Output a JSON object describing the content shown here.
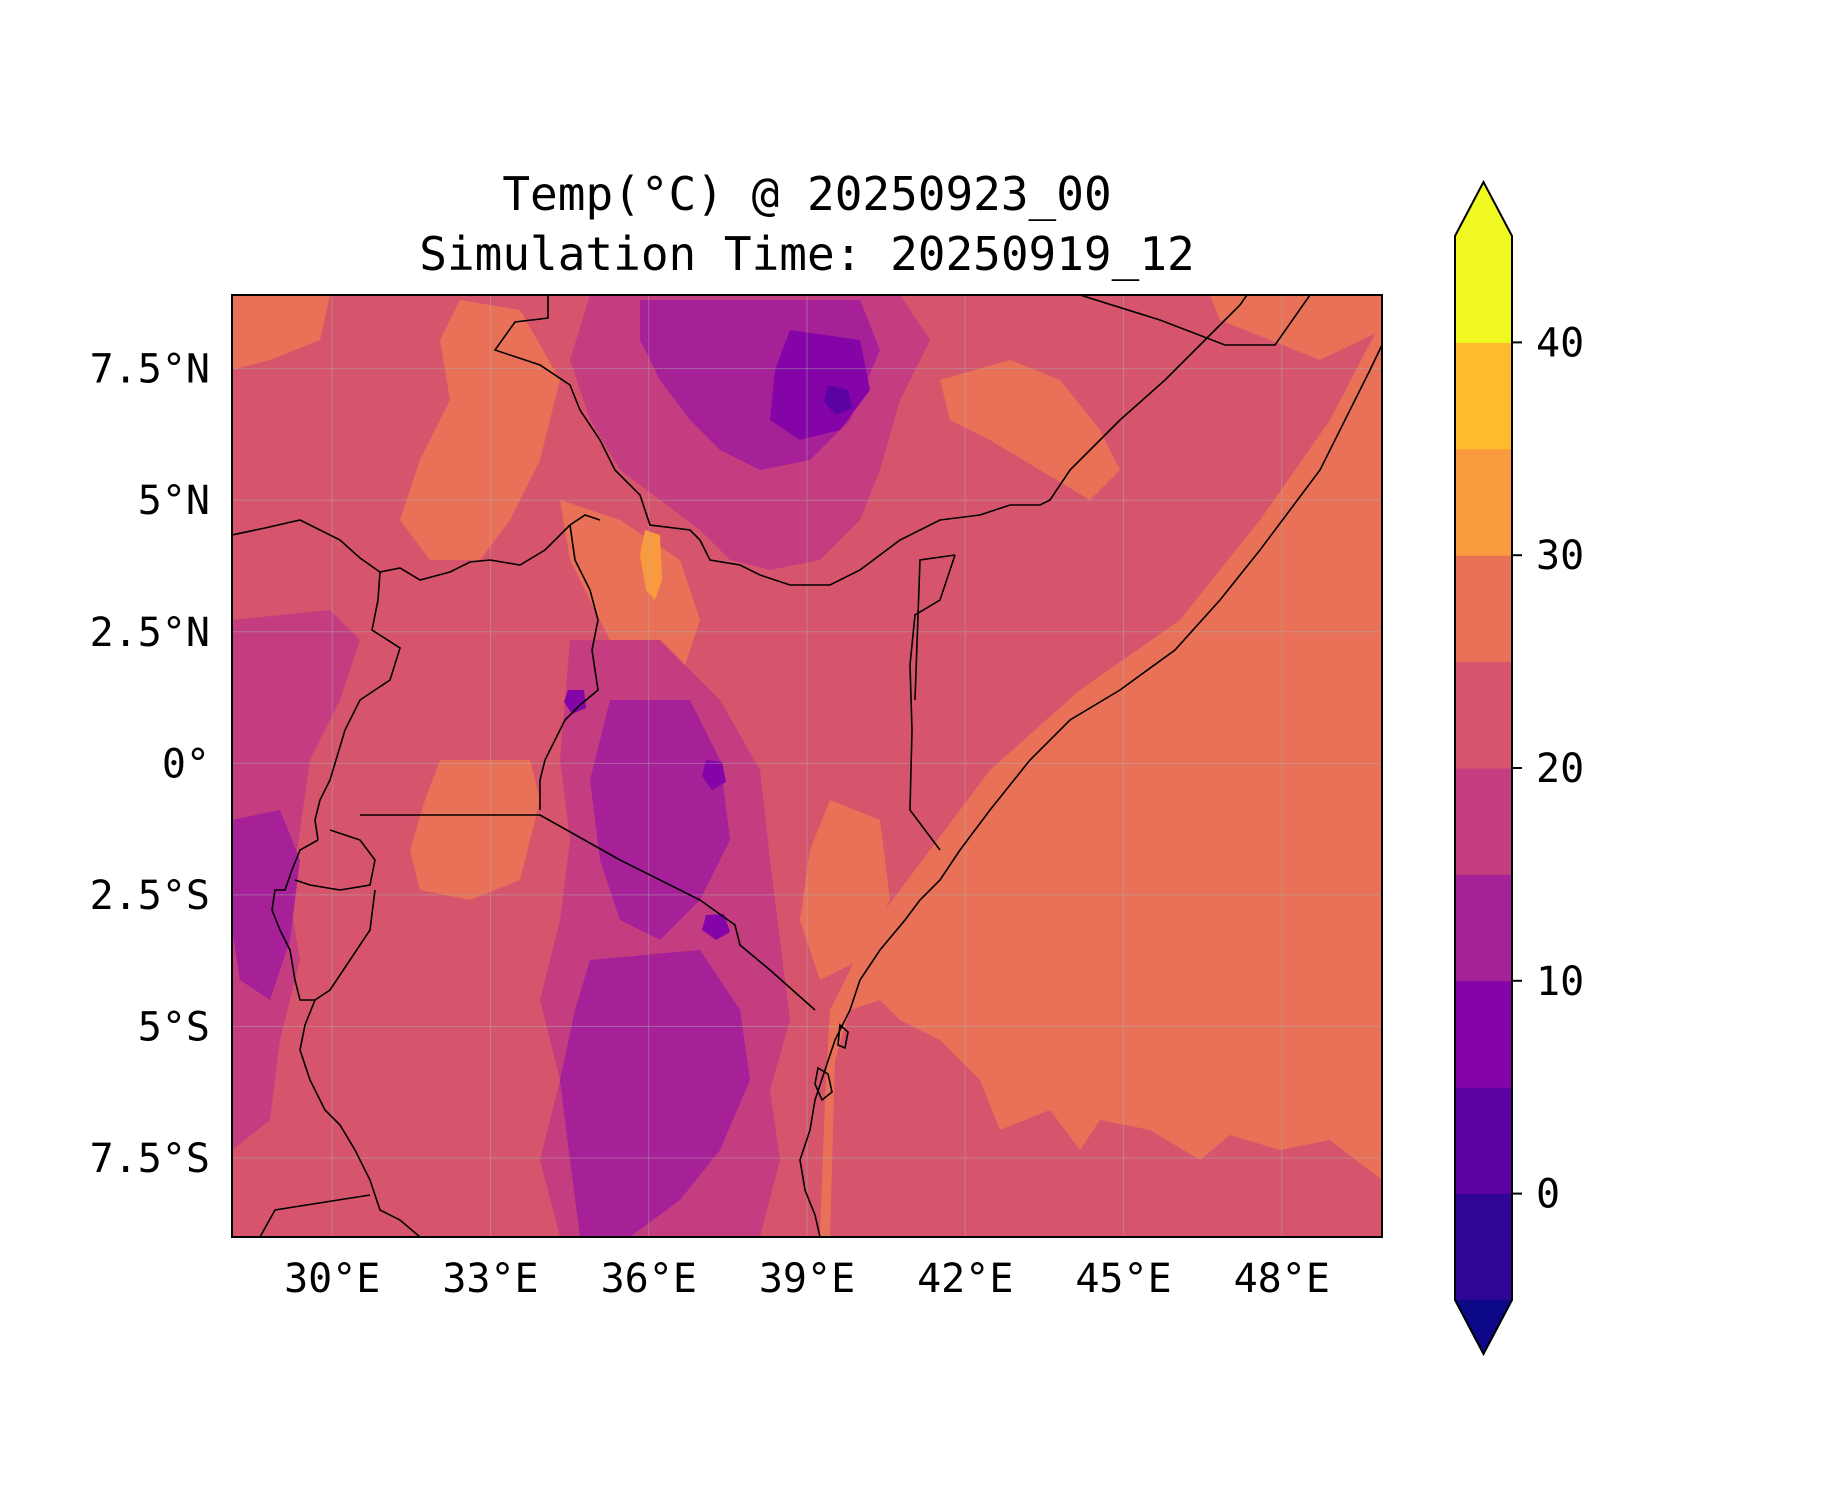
{
  "title": "Temp(°C) @ 20250923_00",
  "subtitle": "Simulation Time: 20250919_12",
  "map": {
    "x_ticks": [
      "30°E",
      "33°E",
      "36°E",
      "39°E",
      "42°E",
      "45°E",
      "48°E"
    ],
    "y_ticks": [
      "7.5°N",
      "5°N",
      "2.5°N",
      "0°",
      "2.5°S",
      "5°S",
      "7.5°S"
    ],
    "x_tick_values": [
      30,
      33,
      36,
      39,
      42,
      45,
      48
    ],
    "y_tick_values": [
      7.5,
      5,
      2.5,
      0,
      -2.5,
      -5,
      -7.5
    ],
    "lon_range": [
      28.1,
      49.9
    ],
    "lat_range": [
      -9.0,
      8.9
    ],
    "gridlines": true
  },
  "colorbar": {
    "tick_labels": [
      "0",
      "10",
      "20",
      "30",
      "40"
    ],
    "tick_values": [
      0,
      10,
      20,
      30,
      40
    ],
    "levels": [
      -5,
      0,
      5,
      10,
      15,
      20,
      25,
      30,
      35,
      40,
      45
    ],
    "colors": [
      "#0d0887",
      "#2f0596",
      "#5b02a3",
      "#8404a7",
      "#a62098",
      "#c33d80",
      "#d6556d",
      "#e97158",
      "#f99a3e",
      "#fdbc2b",
      "#f0f921"
    ],
    "extend": "both"
  },
  "field_colors": {
    "sea": "#e97158",
    "warm": "#f99a3e",
    "mid": "#d6556d",
    "cool": "#c33d80",
    "cold": "#a62098",
    "colder": "#8404a7",
    "coldest": "#5b02a3"
  }
}
